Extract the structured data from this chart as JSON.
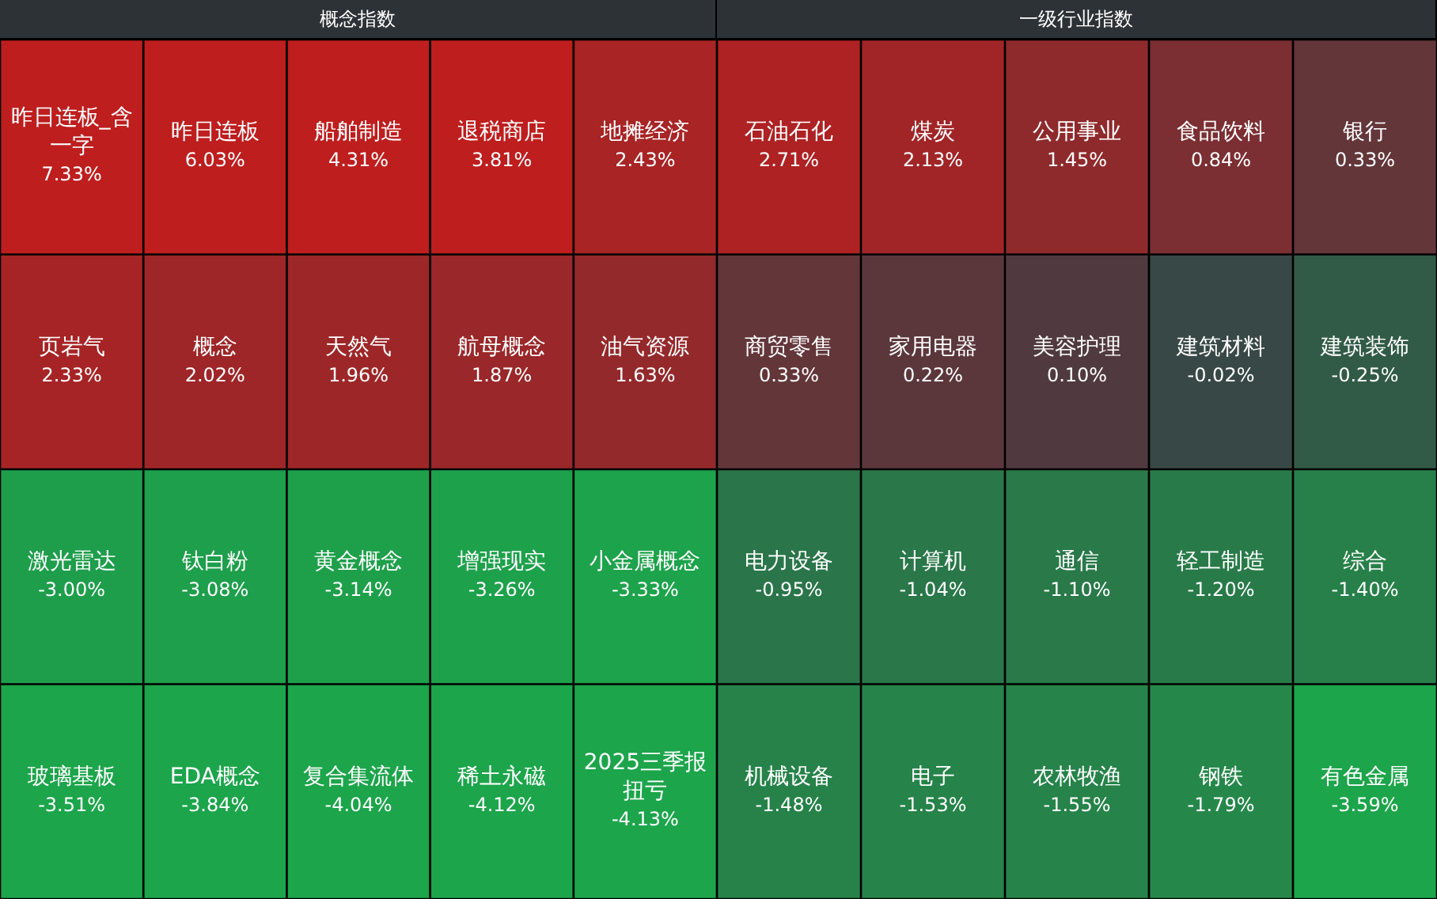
{
  "chart_data": [
    {
      "type": "heatmap",
      "title": "概念指数",
      "categories": [
        null,
        null,
        null,
        null,
        null
      ],
      "y_categories": [
        null,
        null,
        null,
        null
      ],
      "tick_labels": false,
      "cells": [
        [
          7.33,
          6.03,
          4.31,
          3.81,
          2.43
        ],
        [
          2.33,
          2.02,
          1.96,
          1.87,
          1.63
        ],
        [
          -3.0,
          -3.08,
          -3.14,
          -3.26,
          -3.33
        ],
        [
          -3.51,
          -3.84,
          -4.04,
          -4.12,
          -4.13
        ]
      ],
      "cell_labels": [
        [
          "7.33%",
          "6.03%",
          "4.31%",
          "3.81%",
          "2.43%"
        ],
        [
          "2.33%",
          "2.02%",
          "1.96%",
          "1.87%",
          "1.63%"
        ],
        [
          "-3.00%",
          "-3.08%",
          "-3.14%",
          "-3.26%",
          "-3.33%"
        ],
        [
          "-3.51%",
          "-3.84%",
          "-4.04%",
          "-4.12%",
          "-4.13%"
        ]
      ],
      "annotations": [
        "昨日连板_含一字",
        "昨日连板",
        "船舶制造",
        "退税商店",
        "地摊经济",
        "页岩气",
        "概念",
        "天然气",
        "航母概念",
        "油气资源",
        "激光雷达",
        "钛白粉",
        "黄金概念",
        "增强现实",
        "小金属概念",
        "玻璃基板",
        "EDA概念",
        "复合集流体",
        "稀土永磁",
        "2025三季报扭亏"
      ]
    },
    {
      "type": "heatmap",
      "title": "一级行业指数",
      "categories": [
        null,
        null,
        null,
        null,
        null
      ],
      "y_categories": [
        null,
        null,
        null,
        null
      ],
      "tick_labels": false,
      "cells": [
        [
          2.71,
          2.13,
          1.45,
          0.84,
          0.33
        ],
        [
          0.33,
          0.22,
          0.1,
          -0.02,
          -0.25
        ],
        [
          -0.95,
          -1.04,
          -1.1,
          -1.2,
          -1.4
        ],
        [
          -1.48,
          -1.53,
          -1.55,
          -1.79,
          -3.59
        ]
      ],
      "cell_labels": [
        [
          "2.71%",
          "2.13%",
          "1.45%",
          "0.84%",
          "0.33%"
        ],
        [
          "0.33%",
          "0.22%",
          "0.10%",
          "-0.02%",
          "-0.25%"
        ],
        [
          "-0.95%",
          "-1.04%",
          "-1.10%",
          "-1.20%",
          "-1.40%"
        ],
        [
          "-1.48%",
          "-1.53%",
          "-1.55%",
          "-1.79%",
          "-3.59%"
        ]
      ],
      "annotations": [
        "石油石化",
        "煤炭",
        "公用事业",
        "食品饮料",
        "银行",
        "商贸零售",
        "家用电器",
        "美容护理",
        "建筑材料",
        "建筑装饰",
        "电力设备",
        "计算机",
        "通信",
        "轻工制造",
        "综合",
        "机械设备",
        "电子",
        "农林牧渔",
        "钢铁",
        "有色金属"
      ]
    }
  ]
}
